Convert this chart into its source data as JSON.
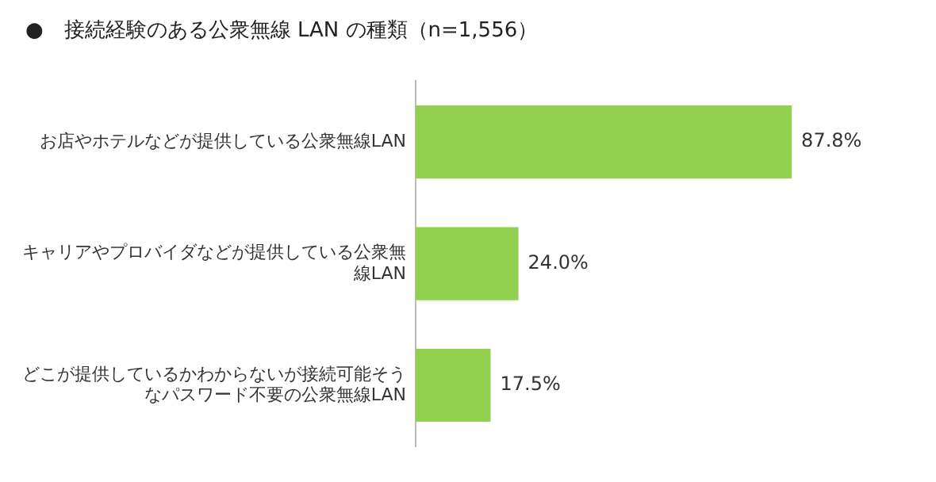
{
  "chart_data": {
    "type": "bar",
    "orientation": "horizontal",
    "title": "●　接続経験のある公衆無線 LAN の種類（n=1,556）",
    "categories": [
      "お店やホテルなどが提供している公衆無線LAN",
      "キャリアやプロバイダなどが提供している公衆無線LAN",
      "どこが提供しているかわからないが接続可能そうなパスワード不要の公衆無線LAN"
    ],
    "values": [
      87.8,
      24.0,
      17.5
    ],
    "color": "#92d050",
    "data_labels": true,
    "value_labels": [
      "87.8%",
      "24.0%",
      "17.5%"
    ],
    "legend": false,
    "grid": false
  }
}
